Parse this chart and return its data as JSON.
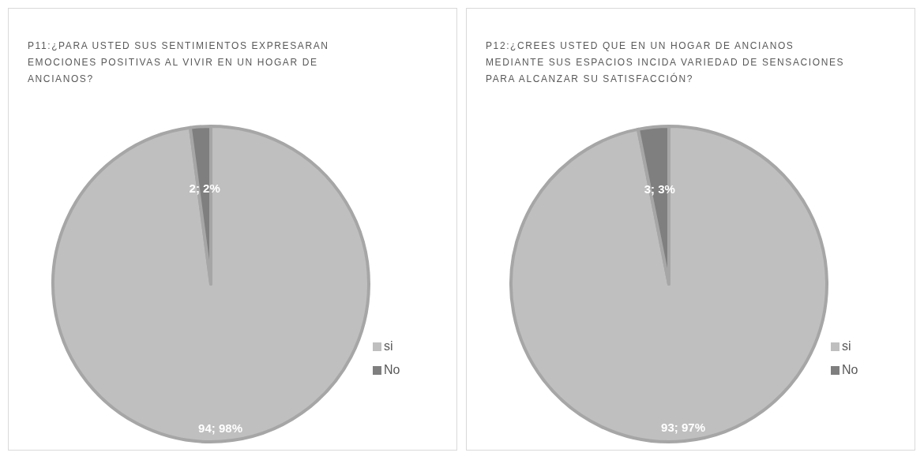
{
  "chart_data": [
    {
      "type": "pie",
      "title": "P11:¿PARA USTED SUS SENTIMIENTOS EXPRESARAN EMOCIONES POSITIVAS AL VIVIR EN UN HOGAR DE ANCIANOS?",
      "categories": [
        "si",
        "No"
      ],
      "values": [
        94,
        2
      ],
      "colors": [
        "#bfbfbf",
        "#7f7f7f"
      ],
      "value_labels": [
        "94; 98%",
        "2; 2%"
      ],
      "legend": "right"
    },
    {
      "type": "pie",
      "title": "P12:¿CREES USTED QUE EN UN HOGAR DE ANCIANOS MEDIANTE SUS ESPACIOS INCIDA VARIEDAD DE SENSACIONES PARA ALCANZAR SU SATISFACCIÓN?",
      "categories": [
        "si",
        "No"
      ],
      "values": [
        93,
        3
      ],
      "colors": [
        "#bfbfbf",
        "#7f7f7f"
      ],
      "value_labels": [
        "93; 97%",
        "3; 3%"
      ],
      "legend": "right"
    }
  ]
}
